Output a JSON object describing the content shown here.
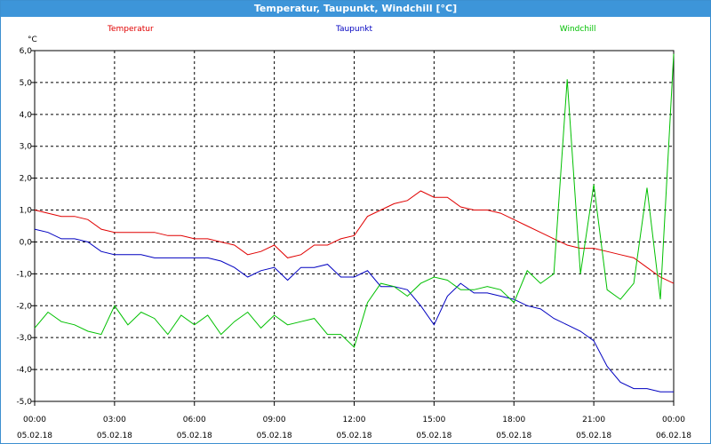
{
  "window": {
    "title": "Temperatur, Taupunkt, Windchill [°C]"
  },
  "chart_data": {
    "type": "line",
    "title": "Temperatur, Taupunkt, Windchill [°C]",
    "ylabel": "°C",
    "ylim": [
      -5.0,
      6.0
    ],
    "yticks": [
      "6,0",
      "5,0",
      "4,0",
      "3,0",
      "2,0",
      "1,0",
      "0,0",
      "-1,0",
      "-2,0",
      "-3,0",
      "-4,0",
      "-5,0"
    ],
    "xticks": [
      {
        "time": "00:00",
        "date": "05.02.18"
      },
      {
        "time": "03:00",
        "date": "05.02.18"
      },
      {
        "time": "06:00",
        "date": "05.02.18"
      },
      {
        "time": "09:00",
        "date": "05.02.18"
      },
      {
        "time": "12:00",
        "date": "05.02.18"
      },
      {
        "time": "15:00",
        "date": "05.02.18"
      },
      {
        "time": "18:00",
        "date": "05.02.18"
      },
      {
        "time": "21:00",
        "date": "05.02.18"
      },
      {
        "time": "00:00",
        "date": "06.02.18"
      }
    ],
    "x_hours": [
      0,
      0.5,
      1,
      1.5,
      2,
      2.5,
      3,
      3.5,
      4,
      4.5,
      5,
      5.5,
      6,
      6.5,
      7,
      7.5,
      8,
      8.5,
      9,
      9.5,
      10,
      10.5,
      11,
      11.5,
      12,
      12.5,
      13,
      13.5,
      14,
      14.5,
      15,
      15.5,
      16,
      16.5,
      17,
      17.5,
      18,
      18.5,
      19,
      19.5,
      20,
      20.5,
      21,
      21.5,
      22,
      22.5,
      23,
      23.5,
      24
    ],
    "grid": true,
    "legend": "top",
    "series": [
      {
        "name": "Temperatur",
        "color": "#e00000",
        "values": [
          1.0,
          0.9,
          0.8,
          0.8,
          0.7,
          0.4,
          0.3,
          0.3,
          0.3,
          0.3,
          0.2,
          0.2,
          0.1,
          0.1,
          0.0,
          -0.1,
          -0.4,
          -0.3,
          -0.1,
          -0.5,
          -0.4,
          -0.1,
          -0.1,
          0.1,
          0.2,
          0.8,
          1.0,
          1.2,
          1.3,
          1.6,
          1.4,
          1.4,
          1.1,
          1.0,
          1.0,
          0.9,
          0.7,
          0.5,
          0.3,
          0.1,
          -0.1,
          -0.2,
          -0.2,
          -0.3,
          -0.4,
          -0.5,
          -0.8,
          -1.1,
          -1.3
        ]
      },
      {
        "name": "Taupunkt",
        "color": "#0000c0",
        "values": [
          0.4,
          0.3,
          0.1,
          0.1,
          0.0,
          -0.3,
          -0.4,
          -0.4,
          -0.4,
          -0.5,
          -0.5,
          -0.5,
          -0.5,
          -0.5,
          -0.6,
          -0.8,
          -1.1,
          -0.9,
          -0.8,
          -1.2,
          -0.8,
          -0.8,
          -0.7,
          -1.1,
          -1.1,
          -0.9,
          -1.4,
          -1.4,
          -1.5,
          -2.0,
          -2.6,
          -1.7,
          -1.3,
          -1.6,
          -1.6,
          -1.7,
          -1.8,
          -2.0,
          -2.1,
          -2.4,
          -2.6,
          -2.8,
          -3.1,
          -3.9,
          -4.4,
          -4.6,
          -4.6,
          -4.7,
          -4.7
        ]
      },
      {
        "name": "Windchill",
        "color": "#00c000",
        "values": [
          -2.7,
          -2.2,
          -2.5,
          -2.6,
          -2.8,
          -2.9,
          -2.0,
          -2.6,
          -2.2,
          -2.4,
          -2.9,
          -2.3,
          -2.6,
          -2.3,
          -2.9,
          -2.5,
          -2.2,
          -2.7,
          -2.3,
          -2.6,
          -2.5,
          -2.4,
          -2.9,
          -2.9,
          -3.3,
          -1.9,
          -1.3,
          -1.4,
          -1.7,
          -1.3,
          -1.1,
          -1.2,
          -1.5,
          -1.5,
          -1.4,
          -1.5,
          -1.9,
          -0.9,
          -1.3,
          -1.0,
          5.1,
          -1.0,
          1.8,
          -1.5,
          -1.8,
          -1.3,
          1.7,
          -1.8,
          5.9
        ]
      }
    ]
  }
}
